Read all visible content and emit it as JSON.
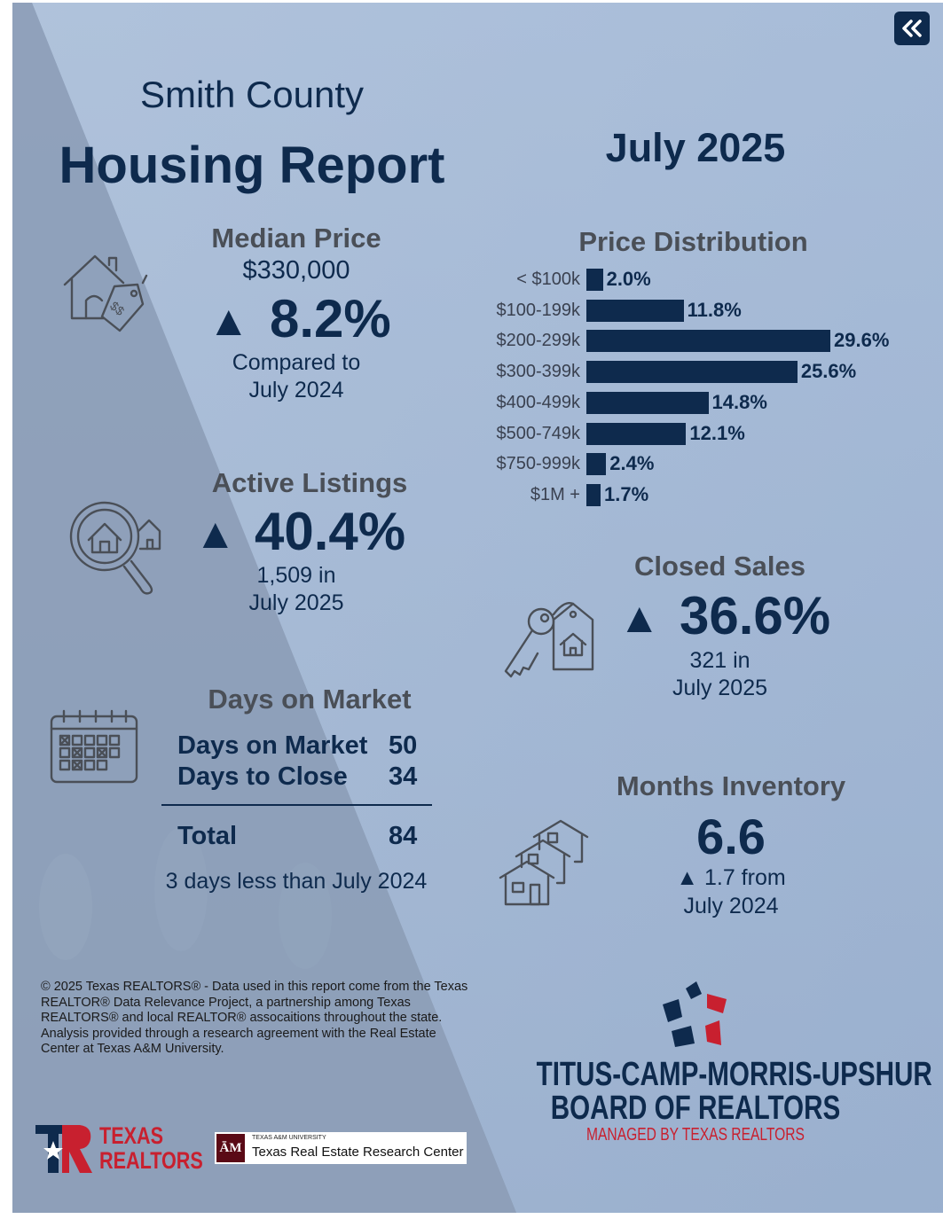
{
  "header": {
    "county": "Smith County",
    "title": "Housing Report",
    "period": "July 2025"
  },
  "median_price": {
    "title": "Median Price",
    "value": "$330,000",
    "arrow": "▲",
    "change": "8.2%",
    "compare_line1": "Compared to",
    "compare_line2": "July 2024",
    "icon": "house-price-tag-icon"
  },
  "price_distribution": {
    "title": "Price Distribution",
    "chart_data": {
      "type": "bar",
      "orientation": "horizontal",
      "categories": [
        "< $100k",
        "$100-199k",
        "$200-299k",
        "$300-399k",
        "$400-499k",
        "$500-749k",
        "$750-999k",
        "$1M +"
      ],
      "values": [
        2.0,
        11.8,
        29.6,
        25.6,
        14.8,
        12.1,
        2.4,
        1.7
      ],
      "labels": [
        "2.0%",
        "11.8%",
        "29.6%",
        "25.6%",
        "14.8%",
        "12.1%",
        "2.4%",
        "1.7%"
      ],
      "unit": "%",
      "color": "#0e2a4d"
    }
  },
  "active_listings": {
    "title": "Active Listings",
    "arrow": "▲",
    "change": "40.4%",
    "line1": "1,509 in",
    "line2": "July 2025",
    "icon": "magnifier-house-icon"
  },
  "closed_sales": {
    "title": "Closed Sales",
    "arrow": "▲",
    "change": "36.6%",
    "line1": "321 in",
    "line2": "July 2025",
    "icon": "key-house-tag-icon"
  },
  "days_on_market": {
    "title": "Days on Market",
    "rows": [
      {
        "label": "Days on Market",
        "value": "50"
      },
      {
        "label": "Days to Close",
        "value": "34"
      }
    ],
    "total_label": "Total",
    "total_value": "84",
    "note": "3 days less than July 2024",
    "icon": "calendar-icon"
  },
  "months_inventory": {
    "title": "Months Inventory",
    "value": "6.6",
    "change_line1": "▲ 1.7 from",
    "change_line2": "July 2024",
    "icon": "houses-stack-icon"
  },
  "footer": {
    "copyright": "© 2025 Texas REALTORS® - Data used in this report come from the Texas REALTOR® Data Relevance Project, a partnership among Texas REALTORS® and local REALTOR® assocaitions throughout the state. Analysis provided through a research agreement with the Real Estate Center at Texas A&M University.",
    "tr_logo_line1": "TEXAS",
    "tr_logo_line2": "REALTORS",
    "tamu_small": "TEXAS A&M UNIVERSITY",
    "tamu_main": "Texas Real Estate Research Center",
    "board_line1": "TITUS-CAMP-MORRIS-UPSHUR",
    "board_line2": "BOARD OF REALTORS",
    "board_line3": "MANAGED BY TEXAS REALTORS"
  },
  "colors": {
    "navy": "#0e2a4d",
    "gray": "#4a4f57",
    "red": "#c8202f",
    "light_blue": "#a9c0dc"
  }
}
